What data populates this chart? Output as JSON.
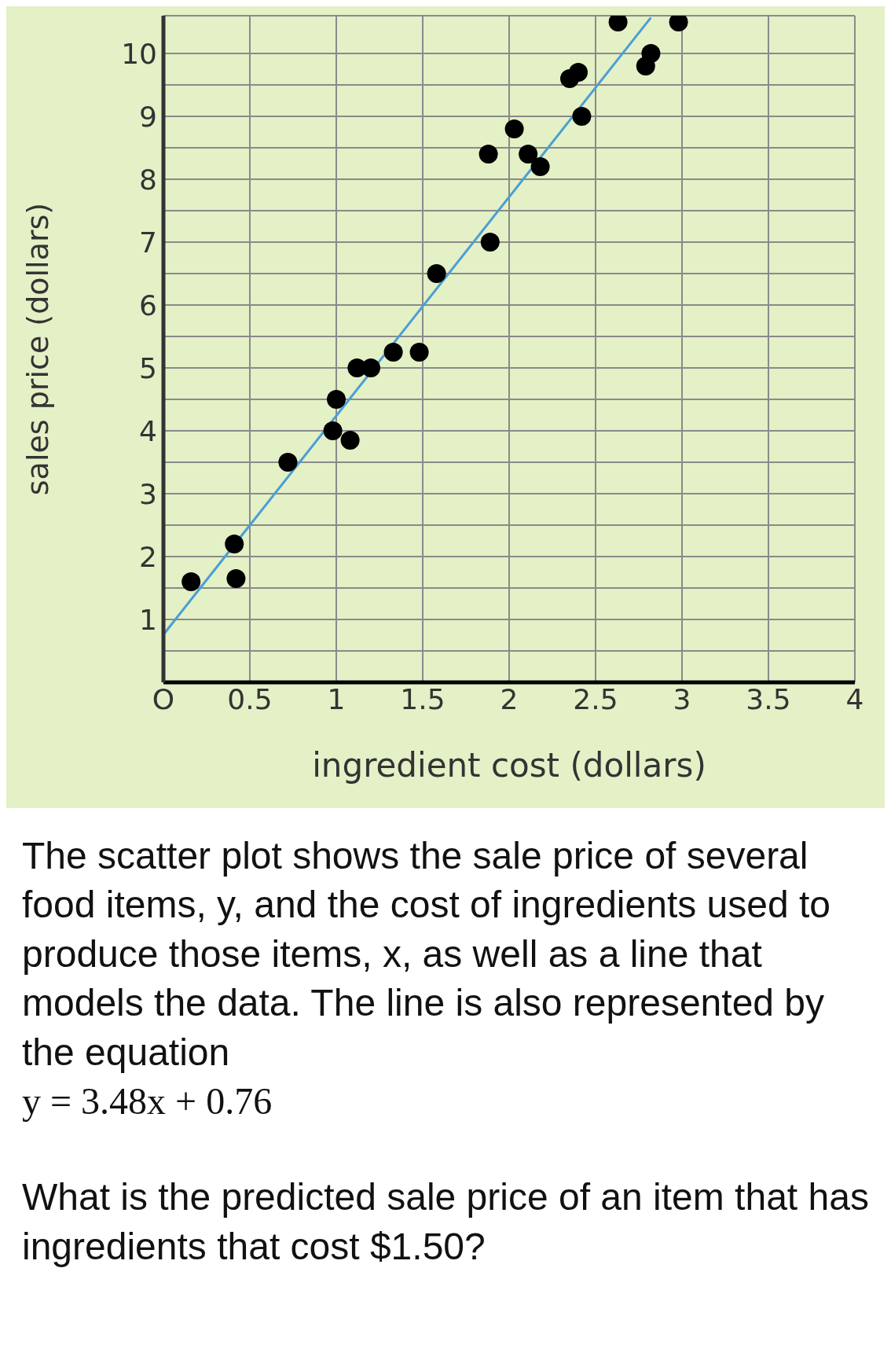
{
  "chart_data": {
    "type": "scatter",
    "xlabel": "ingredient cost (dollars)",
    "ylabel": "sales price (dollars)",
    "xlim": [
      0,
      4
    ],
    "ylim": [
      0,
      10.6
    ],
    "xticks": [
      {
        "value": 0,
        "label": "O"
      },
      0.5,
      1,
      1.5,
      2,
      2.5,
      3,
      3.5,
      4
    ],
    "yticks": [
      {
        "value": 0,
        "label": null
      },
      {
        "value": 0.5,
        "label": null
      },
      1,
      {
        "value": 1.5,
        "label": null
      },
      2,
      {
        "value": 2.5,
        "label": null
      },
      3,
      {
        "value": 3.5,
        "label": null
      },
      4,
      {
        "value": 4.5,
        "label": null
      },
      5,
      {
        "value": 5.5,
        "label": null
      },
      6,
      {
        "value": 6.5,
        "label": null
      },
      7,
      {
        "value": 7.5,
        "label": null
      },
      8,
      {
        "value": 8.5,
        "label": null
      },
      9,
      {
        "value": 9.5,
        "label": null
      },
      10
    ],
    "grid": true,
    "marker": "circle",
    "series": [
      {
        "color": "#000000",
        "x": [
          0.16,
          0.41,
          0.42,
          0.72,
          0.98,
          1.0,
          1.08,
          1.12,
          1.2,
          1.33,
          1.48,
          1.58,
          1.88,
          1.89,
          2.03,
          2.11,
          2.18,
          2.35,
          2.4,
          2.42,
          2.63,
          2.79,
          2.82,
          2.98
        ],
        "values": [
          1.6,
          2.2,
          1.65,
          3.5,
          4.0,
          4.5,
          3.85,
          5.0,
          5.0,
          5.25,
          5.25,
          6.5,
          8.4,
          7.0,
          8.8,
          8.4,
          8.2,
          9.6,
          9.7,
          9.0,
          10.5,
          9.8,
          10.0,
          10.5
        ]
      },
      {
        "type": "line",
        "color": "#4a9fd4",
        "marker": "none",
        "x": [
          0,
          2.82
        ],
        "values": [
          0.76,
          10.57
        ]
      }
    ],
    "annotations": [
      "The scatter plot shows the sale price of several food items, y, and the cost of ingredients used to produce those items, x, as well as a line that models the data. The line is also represented by the equation",
      "y = 3.48x + 0.76",
      "What is the predicted sale price of an item that has ingredients that cost $1.50?"
    ]
  }
}
